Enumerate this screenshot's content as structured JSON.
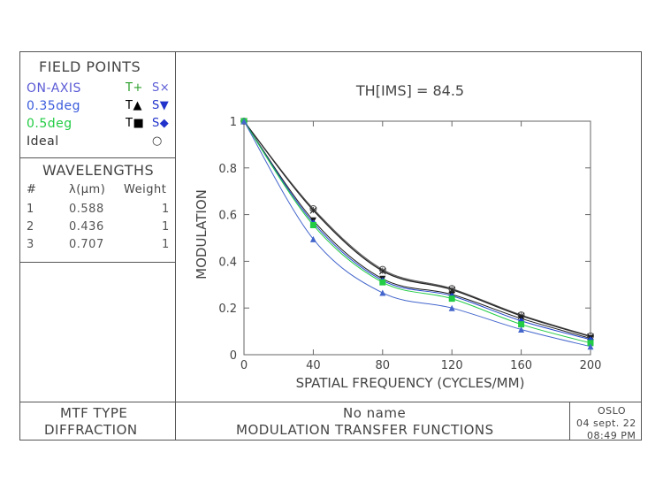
{
  "field_points": {
    "title": "FIELD POINTS",
    "rows": [
      {
        "label": "ON-AXIS",
        "t": "T+",
        "s": "S×",
        "color": "#5b5bd6",
        "t_color": "#2ca02c",
        "s_color": "#5b5bd6"
      },
      {
        "label": "0.35deg",
        "t": "T▲",
        "s": "S▼",
        "color": "#3a5bdc",
        "t_color": "#000000",
        "s_color": "#2233cc"
      },
      {
        "label": "0.5deg",
        "t": "T■",
        "s": "S◆",
        "color": "#22cc44",
        "t_color": "#000000",
        "s_color": "#2233cc"
      },
      {
        "label": "Ideal",
        "t": "",
        "s": "○",
        "color": "#333333",
        "t_color": "#333333",
        "s_color": "#333333"
      }
    ]
  },
  "wavelengths": {
    "title": "WAVELENGTHS",
    "headers": [
      "#",
      "λ(μm)",
      "Weight"
    ],
    "rows": [
      [
        "1",
        "0.588",
        "1"
      ],
      [
        "2",
        "0.436",
        "1"
      ],
      [
        "3",
        "0.707",
        "1"
      ]
    ]
  },
  "mtf_type": {
    "line1": "MTF TYPE",
    "line2": "DIFFRACTION"
  },
  "footer": {
    "name": "No name",
    "title": "MODULATION TRANSFER FUNCTIONS"
  },
  "stamp": {
    "app": "OSLO",
    "date": "04 sept. 22",
    "time": "08:49 PM"
  },
  "chart_data": {
    "type": "line",
    "title": "TH[IMS] = 84.5",
    "xlabel": "SPATIAL FREQUENCY (CYCLES/MM)",
    "ylabel": "MODULATION",
    "xlim": [
      0,
      200
    ],
    "ylim": [
      0,
      1
    ],
    "xticks": [
      0,
      40,
      80,
      120,
      160,
      200
    ],
    "yticks": [
      0,
      0.2,
      0.4,
      0.6,
      0.8,
      1
    ],
    "x": [
      0,
      40,
      80,
      120,
      160,
      200
    ],
    "series": [
      {
        "name": "Ideal",
        "marker": "circle",
        "color": "#555555",
        "values": [
          1.0,
          0.625,
          0.365,
          0.283,
          0.17,
          0.08
        ]
      },
      {
        "name": "ON-AXIS T",
        "marker": "plus",
        "color": "#444444",
        "values": [
          1.0,
          0.62,
          0.36,
          0.28,
          0.168,
          0.078
        ]
      },
      {
        "name": "ON-AXIS S",
        "marker": "x",
        "color": "#222222",
        "values": [
          1.0,
          0.618,
          0.358,
          0.278,
          0.166,
          0.077
        ]
      },
      {
        "name": "0.35deg S",
        "marker": "down",
        "color": "#1a1a1a",
        "values": [
          1.0,
          0.575,
          0.325,
          0.258,
          0.155,
          0.07
        ]
      },
      {
        "name": "0.5deg S",
        "marker": "diamond",
        "color": "#2244cc",
        "values": [
          1.0,
          0.565,
          0.318,
          0.252,
          0.145,
          0.065
        ]
      },
      {
        "name": "0.5deg T",
        "marker": "square",
        "color": "#22cc44",
        "values": [
          1.0,
          0.555,
          0.31,
          0.24,
          0.13,
          0.05
        ]
      },
      {
        "name": "0.35deg T",
        "marker": "triangle",
        "color": "#4466cc",
        "values": [
          1.0,
          0.495,
          0.265,
          0.2,
          0.108,
          0.035
        ]
      }
    ]
  }
}
